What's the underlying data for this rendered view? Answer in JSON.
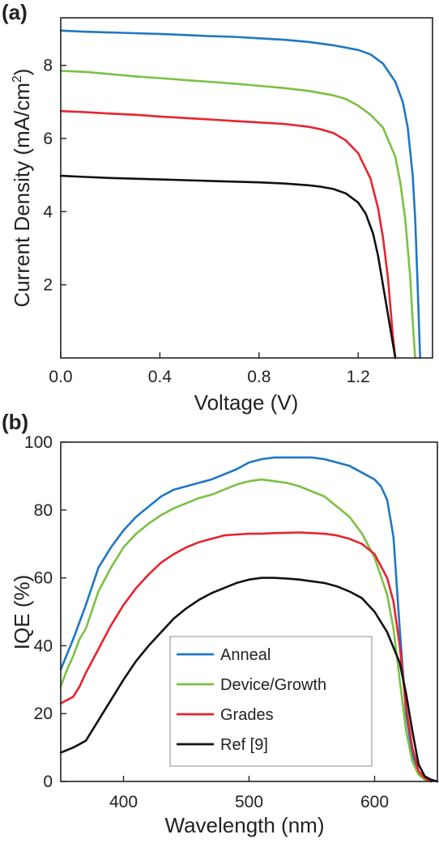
{
  "colors": {
    "anneal": "#1f77c4",
    "device_growth": "#7ac143",
    "grades": "#e8232d",
    "ref": "#111111"
  },
  "chart_data": [
    {
      "panel_label": "(a)",
      "type": "line",
      "xlabel": "Voltage (V)",
      "ylabel": "Current Density (mA/cm",
      "ylabel_sup": "2",
      "ylabel_end": ")",
      "xlim": [
        0,
        1.5
      ],
      "ylim": [
        0,
        9.3
      ],
      "xticks": [
        {
          "value": 0.0,
          "label": "0.0"
        },
        {
          "value": 0.4,
          "label": "0.4"
        },
        {
          "value": 0.8,
          "label": "0.8"
        },
        {
          "value": 1.2,
          "label": "1.2"
        }
      ],
      "yticks": [
        {
          "value": 2,
          "label": "2"
        },
        {
          "value": 4,
          "label": "4"
        },
        {
          "value": 6,
          "label": "6"
        },
        {
          "value": 8,
          "label": "8"
        }
      ],
      "series": [
        {
          "key": "anneal",
          "x": [
            0,
            0.1,
            0.2,
            0.3,
            0.4,
            0.5,
            0.6,
            0.7,
            0.8,
            0.9,
            1.0,
            1.1,
            1.2,
            1.25,
            1.3,
            1.35,
            1.38,
            1.4,
            1.42,
            1.43,
            1.44,
            1.45
          ],
          "y": [
            8.95,
            8.92,
            8.9,
            8.88,
            8.86,
            8.83,
            8.8,
            8.78,
            8.74,
            8.7,
            8.64,
            8.55,
            8.42,
            8.3,
            8.05,
            7.55,
            7.0,
            6.3,
            5.0,
            3.8,
            2.0,
            0.0
          ]
        },
        {
          "key": "device_growth",
          "x": [
            0,
            0.1,
            0.2,
            0.3,
            0.4,
            0.5,
            0.6,
            0.7,
            0.8,
            0.9,
            1.0,
            1.1,
            1.15,
            1.2,
            1.25,
            1.3,
            1.35,
            1.37,
            1.39,
            1.41,
            1.42,
            1.43
          ],
          "y": [
            7.85,
            7.82,
            7.76,
            7.7,
            7.65,
            7.6,
            7.55,
            7.5,
            7.44,
            7.38,
            7.3,
            7.18,
            7.08,
            6.9,
            6.65,
            6.3,
            5.5,
            4.8,
            3.8,
            2.2,
            1.0,
            0.0
          ]
        },
        {
          "key": "grades",
          "x": [
            0,
            0.1,
            0.2,
            0.3,
            0.4,
            0.5,
            0.6,
            0.7,
            0.8,
            0.9,
            1.0,
            1.05,
            1.1,
            1.15,
            1.2,
            1.25,
            1.28,
            1.3,
            1.32,
            1.33,
            1.34,
            1.35
          ],
          "y": [
            6.75,
            6.72,
            6.68,
            6.65,
            6.6,
            6.56,
            6.52,
            6.48,
            6.44,
            6.4,
            6.32,
            6.25,
            6.15,
            5.95,
            5.6,
            4.9,
            4.1,
            3.3,
            2.2,
            1.4,
            0.6,
            0.0
          ]
        },
        {
          "key": "ref",
          "x": [
            0,
            0.1,
            0.2,
            0.3,
            0.4,
            0.5,
            0.6,
            0.7,
            0.8,
            0.9,
            1.0,
            1.05,
            1.1,
            1.15,
            1.2,
            1.23,
            1.26,
            1.28,
            1.3,
            1.32,
            1.34,
            1.35
          ],
          "y": [
            4.98,
            4.95,
            4.92,
            4.9,
            4.88,
            4.86,
            4.84,
            4.82,
            4.8,
            4.77,
            4.72,
            4.68,
            4.62,
            4.5,
            4.25,
            3.95,
            3.4,
            2.8,
            2.0,
            1.2,
            0.4,
            0.0
          ]
        }
      ]
    },
    {
      "panel_label": "(b)",
      "type": "line",
      "xlabel": "Wavelength (nm)",
      "ylabel": "IQE (%)",
      "xlim": [
        350,
        650
      ],
      "ylim": [
        0,
        100
      ],
      "xticks": [
        {
          "value": 400,
          "label": "400"
        },
        {
          "value": 500,
          "label": "500"
        },
        {
          "value": 600,
          "label": "600"
        }
      ],
      "yticks": [
        {
          "value": 0,
          "label": "0"
        },
        {
          "value": 20,
          "label": "20"
        },
        {
          "value": 40,
          "label": "40"
        },
        {
          "value": 60,
          "label": "60"
        },
        {
          "value": 80,
          "label": "80"
        },
        {
          "value": 100,
          "label": "100"
        }
      ],
      "legend": {
        "placement": "bottom-right",
        "entries": [
          {
            "key": "anneal",
            "label": "Anneal"
          },
          {
            "key": "device_growth",
            "label": "Device/Growth"
          },
          {
            "key": "grades",
            "label": "Grades"
          },
          {
            "key": "ref",
            "label": "Ref [9]"
          }
        ]
      },
      "series": [
        {
          "key": "anneal",
          "x": [
            350,
            360,
            370,
            380,
            390,
            400,
            410,
            420,
            430,
            440,
            450,
            460,
            470,
            480,
            490,
            500,
            510,
            520,
            530,
            540,
            550,
            560,
            570,
            580,
            590,
            600,
            605,
            610,
            615,
            620,
            625,
            630,
            635,
            640,
            645,
            650
          ],
          "y": [
            33,
            42,
            52,
            63,
            69,
            74,
            78,
            81,
            84,
            86,
            87,
            88,
            89,
            90.5,
            92,
            94,
            95,
            95.5,
            95.5,
            95.5,
            95.5,
            95,
            94,
            93,
            91,
            89,
            87,
            83,
            72,
            45,
            20,
            8,
            3,
            1,
            0.5,
            0
          ]
        },
        {
          "key": "device_growth",
          "x": [
            350,
            355,
            360,
            365,
            370,
            380,
            390,
            400,
            410,
            420,
            430,
            440,
            450,
            460,
            470,
            480,
            490,
            500,
            510,
            520,
            530,
            540,
            550,
            560,
            570,
            580,
            590,
            600,
            610,
            615,
            620,
            625,
            630,
            635,
            640,
            645
          ],
          "y": [
            28,
            33,
            37,
            42,
            45,
            56,
            63,
            69,
            73,
            76,
            78.5,
            80.5,
            82,
            83.5,
            84.5,
            86,
            87.5,
            88.5,
            89,
            88.5,
            88,
            87,
            85.5,
            84,
            81,
            78,
            73,
            66,
            55,
            45,
            30,
            15,
            6,
            2,
            0.5,
            0
          ]
        },
        {
          "key": "grades",
          "x": [
            350,
            360,
            365,
            370,
            380,
            390,
            400,
            410,
            420,
            430,
            440,
            450,
            460,
            470,
            480,
            490,
            500,
            510,
            520,
            530,
            540,
            550,
            560,
            570,
            580,
            590,
            600,
            610,
            615,
            620,
            625,
            630,
            635,
            640,
            645
          ],
          "y": [
            23,
            25,
            28,
            32,
            39,
            46,
            52,
            57,
            61,
            64.5,
            67,
            69,
            70.5,
            71.5,
            72.5,
            72.8,
            73,
            73,
            73.2,
            73.3,
            73.4,
            73.2,
            73,
            72.5,
            71.5,
            70,
            67,
            60,
            53,
            40,
            22,
            10,
            3,
            1,
            0
          ]
        },
        {
          "key": "ref",
          "x": [
            350,
            360,
            370,
            380,
            390,
            400,
            410,
            420,
            430,
            440,
            450,
            460,
            470,
            480,
            490,
            500,
            510,
            520,
            530,
            540,
            550,
            560,
            570,
            580,
            590,
            600,
            610,
            620,
            625,
            630,
            635,
            640,
            645,
            650
          ],
          "y": [
            8.5,
            10,
            12,
            18,
            24,
            30,
            35.5,
            40,
            44,
            48,
            51,
            53.5,
            55.5,
            57,
            58.5,
            59.5,
            60,
            60,
            59.8,
            59.5,
            59,
            58.5,
            57.5,
            56,
            54,
            50,
            44,
            35,
            26,
            15,
            5,
            1.5,
            0.5,
            0
          ]
        }
      ]
    }
  ]
}
